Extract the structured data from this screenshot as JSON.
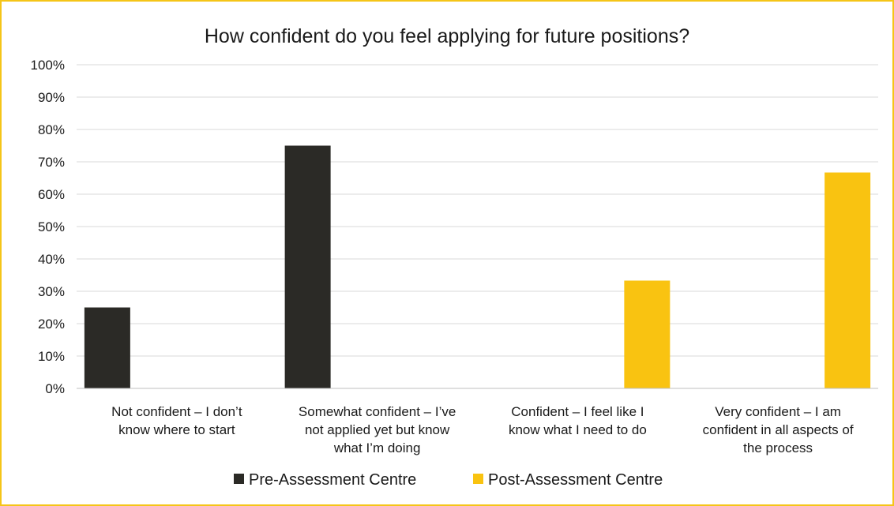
{
  "chart_data": {
    "type": "bar",
    "title": "How confident do you feel applying for future positions?",
    "xlabel": "",
    "ylabel": "",
    "categories": [
      [
        "Not confident – I don’t",
        "know where to start"
      ],
      [
        "Somewhat confident – I’ve",
        "not applied yet but know",
        "what I’m doing"
      ],
      [
        "Confident – I feel like I",
        "know what I need to do"
      ],
      [
        "Very confident – I am",
        "confident in all aspects of",
        "the process"
      ]
    ],
    "series": [
      {
        "name": "Pre-Assessment Centre",
        "color": "#2b2a26",
        "values": [
          25,
          75,
          0,
          0
        ]
      },
      {
        "name": "Post-Assessment Centre",
        "color": "#f9c311",
        "values": [
          0,
          0,
          33.3,
          66.7
        ]
      }
    ],
    "ylim": [
      0,
      100
    ],
    "yticks": [
      0,
      10,
      20,
      30,
      40,
      50,
      60,
      70,
      80,
      90,
      100
    ],
    "ytick_labels": [
      "0%",
      "10%",
      "20%",
      "30%",
      "40%",
      "50%",
      "60%",
      "70%",
      "80%",
      "90%",
      "100%"
    ],
    "grid": true,
    "legend_position": "bottom",
    "gridline_color": "#d9d9d9",
    "axis_color": "#bfbfbf"
  }
}
